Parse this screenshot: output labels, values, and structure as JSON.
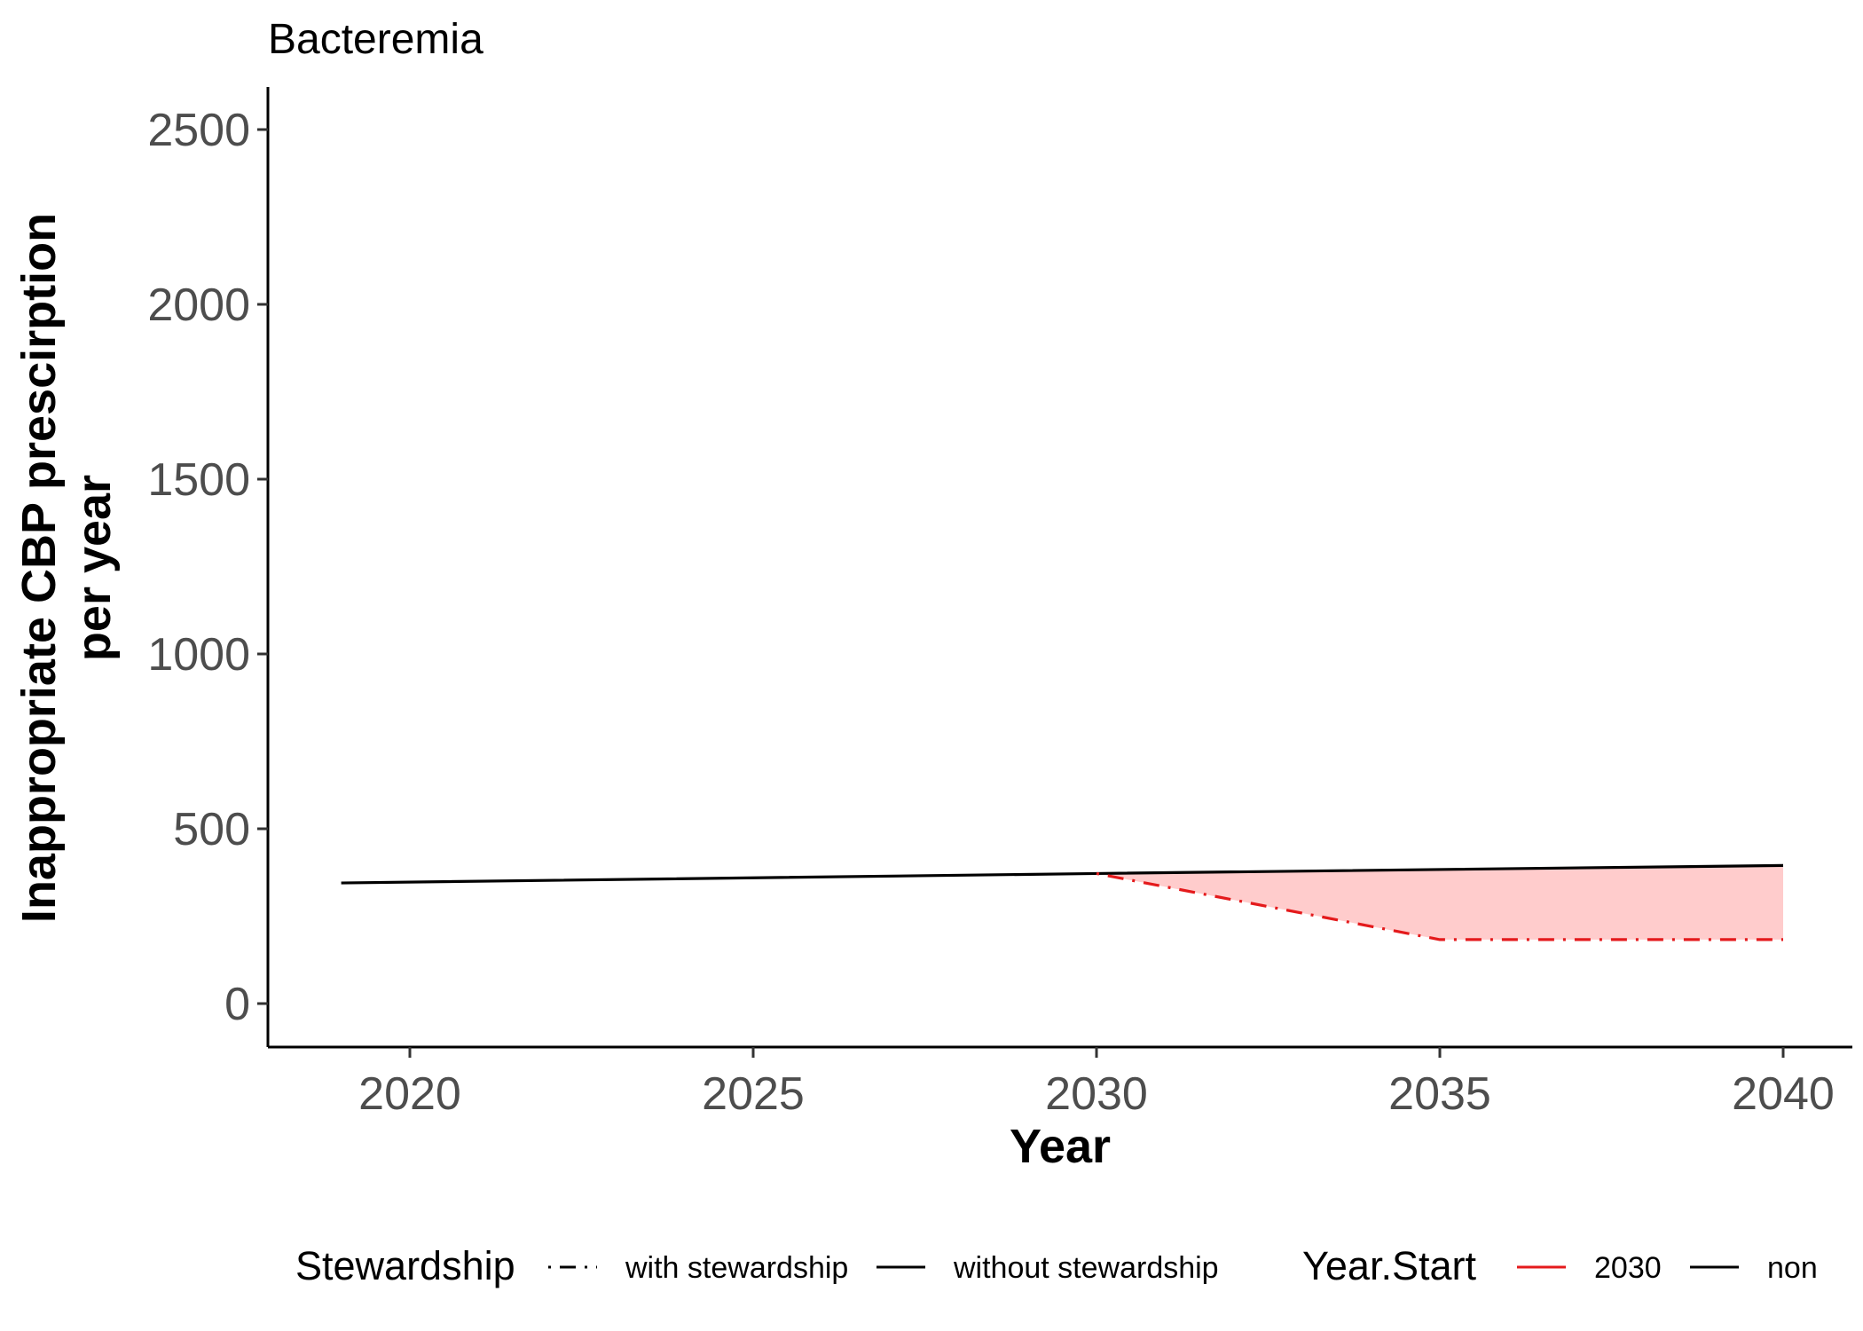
{
  "chart_data": {
    "type": "line",
    "title": "Bacteremia",
    "xlabel": "Year",
    "ylabel_lines": [
      "Inappropriate CBP prescirption",
      "per year"
    ],
    "xlim": [
      2019,
      2040
    ],
    "ylim": [
      -120,
      2620
    ],
    "xticks": [
      2020,
      2025,
      2030,
      2035,
      2040
    ],
    "yticks": [
      0,
      500,
      1000,
      1500,
      2000,
      2500
    ],
    "grid": false,
    "series": [
      {
        "name": "without stewardship",
        "year_start": "non",
        "color": "#000000",
        "linetype": "solid",
        "x": [
          2019,
          2030,
          2040
        ],
        "y": [
          345,
          372,
          395
        ]
      },
      {
        "name": "with stewardship",
        "year_start": "2030",
        "color": "#e41a1c",
        "linetype": "dotdash",
        "x": [
          2030,
          2035,
          2040
        ],
        "y": [
          372,
          183,
          183
        ]
      }
    ],
    "ribbon": {
      "color": "#ffcccc",
      "x": [
        2030,
        2035,
        2040
      ],
      "upper": [
        372,
        383,
        395
      ],
      "lower": [
        372,
        183,
        183
      ]
    },
    "legend": {
      "position": "bottom",
      "groups": [
        {
          "title": "Stewardship",
          "items": [
            {
              "label": "with stewardship",
              "color": "#000000",
              "linetype": "dotdash"
            },
            {
              "label": "without stewardship",
              "color": "#000000",
              "linetype": "solid"
            }
          ]
        },
        {
          "title": "Year.Start",
          "items": [
            {
              "label": "2030",
              "color": "#e41a1c",
              "linetype": "solid"
            },
            {
              "label": "non",
              "color": "#000000",
              "linetype": "solid"
            }
          ]
        }
      ]
    }
  }
}
